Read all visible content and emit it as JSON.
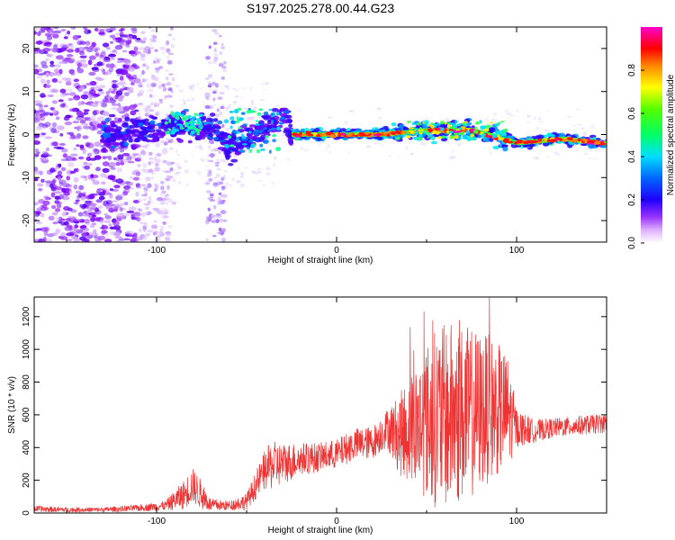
{
  "page": {
    "title": "S197.2025.278.00.44.G23"
  },
  "chart_data": [
    {
      "type": "heatmap",
      "title": "S197.2025.278.00.44.G23",
      "xlabel": "Height of straight line (km)",
      "ylabel": "Frequency (Hz)",
      "xlim": [
        -168,
        150
      ],
      "ylim": [
        -25,
        25
      ],
      "xticks": [
        -100,
        0,
        100
      ],
      "yticks": [
        -20,
        -10,
        0,
        10,
        20
      ],
      "colorbar": {
        "label": "Normalized spectral amplitude",
        "range": [
          0,
          1
        ],
        "ticks": [
          0.0,
          0.2,
          0.4,
          0.6,
          0.8
        ],
        "tick_labels": [
          "0.0",
          "0.2",
          "0.4",
          "0.6",
          "0.8"
        ],
        "colors": [
          "#ffffff",
          "#c060ff",
          "#7000ff",
          "#0000ff",
          "#00e0ff",
          "#00ff00",
          "#ffff00",
          "#ff8000",
          "#ff0000",
          "#ff00ff"
        ]
      },
      "ridge": {
        "x": [
          -168,
          -120,
          -90,
          -70,
          -60,
          -45,
          -30,
          -25,
          0,
          25,
          50,
          75,
          100,
          125,
          150
        ],
        "y": [
          0,
          0,
          2,
          2,
          -3,
          0,
          5,
          0,
          0,
          0,
          1,
          1,
          -2,
          -1,
          -2
        ]
      }
    },
    {
      "type": "line",
      "xlabel": "Height of straight line (km)",
      "ylabel": "SNR (10 * v/v)",
      "xlim": [
        -168,
        150
      ],
      "ylim": [
        0,
        1320
      ],
      "xticks": [
        -100,
        0,
        100
      ],
      "yticks": [
        0,
        200,
        400,
        600,
        800,
        1000,
        1200
      ],
      "series": [
        {
          "name": "SNR",
          "color": "#ee3333",
          "x": [
            -168,
            -150,
            -130,
            -110,
            -95,
            -85,
            -80,
            -75,
            -70,
            -60,
            -50,
            -40,
            -36,
            -30,
            -20,
            -10,
            0,
            10,
            20,
            28,
            35,
            45,
            55,
            65,
            75,
            85,
            95,
            100,
            110,
            120,
            130,
            140,
            150
          ],
          "y": [
            25,
            20,
            20,
            30,
            45,
            110,
            170,
            110,
            50,
            45,
            70,
            260,
            290,
            300,
            330,
            340,
            360,
            420,
            430,
            520,
            480,
            540,
            580,
            600,
            610,
            640,
            620,
            520,
            500,
            520,
            530,
            540,
            550
          ],
          "noise": [
            20,
            15,
            15,
            20,
            30,
            90,
            110,
            90,
            40,
            30,
            50,
            120,
            150,
            130,
            100,
            90,
            90,
            100,
            100,
            120,
            250,
            400,
            550,
            580,
            520,
            450,
            350,
            120,
            70,
            60,
            60,
            60,
            60
          ]
        }
      ]
    }
  ]
}
